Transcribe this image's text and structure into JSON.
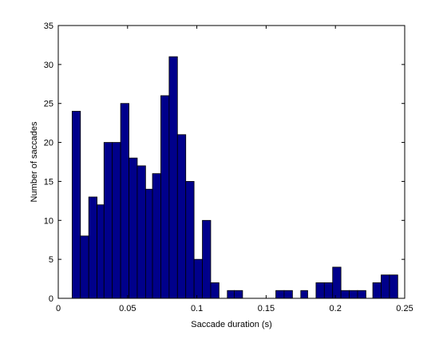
{
  "chart_data": {
    "type": "bar",
    "title": "",
    "xlabel": "Saccade duration (s)",
    "ylabel": "Number of saccades",
    "xlim": [
      0,
      0.25
    ],
    "ylim": [
      0,
      35
    ],
    "x_ticks": [
      0,
      0.05,
      0.1,
      0.15,
      0.2,
      0.25
    ],
    "x_tick_labels": [
      "0",
      "0.05",
      "0.1",
      "0.15",
      "0.2",
      "0.25"
    ],
    "y_ticks": [
      0,
      5,
      10,
      15,
      20,
      25,
      30,
      35
    ],
    "y_tick_labels": [
      "0",
      "5",
      "10",
      "15",
      "20",
      "25",
      "30",
      "35"
    ],
    "grid": false,
    "bar_color": "#00008b",
    "bins": [
      {
        "start": 0.01,
        "end": 0.016,
        "value": 24
      },
      {
        "start": 0.016,
        "end": 0.022,
        "value": 8
      },
      {
        "start": 0.022,
        "end": 0.028,
        "value": 13
      },
      {
        "start": 0.028,
        "end": 0.033,
        "value": 12
      },
      {
        "start": 0.033,
        "end": 0.039,
        "value": 20
      },
      {
        "start": 0.039,
        "end": 0.045,
        "value": 20
      },
      {
        "start": 0.045,
        "end": 0.051,
        "value": 25
      },
      {
        "start": 0.051,
        "end": 0.057,
        "value": 18
      },
      {
        "start": 0.057,
        "end": 0.063,
        "value": 17
      },
      {
        "start": 0.063,
        "end": 0.068,
        "value": 14
      },
      {
        "start": 0.068,
        "end": 0.074,
        "value": 16
      },
      {
        "start": 0.074,
        "end": 0.08,
        "value": 26
      },
      {
        "start": 0.08,
        "end": 0.086,
        "value": 31
      },
      {
        "start": 0.086,
        "end": 0.092,
        "value": 21
      },
      {
        "start": 0.092,
        "end": 0.098,
        "value": 15
      },
      {
        "start": 0.098,
        "end": 0.104,
        "value": 5
      },
      {
        "start": 0.104,
        "end": 0.11,
        "value": 10
      },
      {
        "start": 0.11,
        "end": 0.116,
        "value": 2
      },
      {
        "start": 0.116,
        "end": 0.122,
        "value": 0
      },
      {
        "start": 0.122,
        "end": 0.127,
        "value": 1
      },
      {
        "start": 0.127,
        "end": 0.133,
        "value": 1
      },
      {
        "start": 0.133,
        "end": 0.139,
        "value": 0
      },
      {
        "start": 0.139,
        "end": 0.145,
        "value": 0
      },
      {
        "start": 0.145,
        "end": 0.151,
        "value": 0
      },
      {
        "start": 0.151,
        "end": 0.157,
        "value": 0
      },
      {
        "start": 0.157,
        "end": 0.163,
        "value": 1
      },
      {
        "start": 0.163,
        "end": 0.169,
        "value": 1
      },
      {
        "start": 0.169,
        "end": 0.175,
        "value": 0
      },
      {
        "start": 0.175,
        "end": 0.18,
        "value": 1
      },
      {
        "start": 0.18,
        "end": 0.186,
        "value": 0
      },
      {
        "start": 0.186,
        "end": 0.192,
        "value": 2
      },
      {
        "start": 0.192,
        "end": 0.198,
        "value": 2
      },
      {
        "start": 0.198,
        "end": 0.204,
        "value": 4
      },
      {
        "start": 0.204,
        "end": 0.21,
        "value": 1
      },
      {
        "start": 0.21,
        "end": 0.216,
        "value": 1
      },
      {
        "start": 0.216,
        "end": 0.222,
        "value": 1
      },
      {
        "start": 0.222,
        "end": 0.227,
        "value": 0
      },
      {
        "start": 0.227,
        "end": 0.233,
        "value": 2
      },
      {
        "start": 0.233,
        "end": 0.239,
        "value": 3
      },
      {
        "start": 0.239,
        "end": 0.245,
        "value": 3
      }
    ]
  }
}
